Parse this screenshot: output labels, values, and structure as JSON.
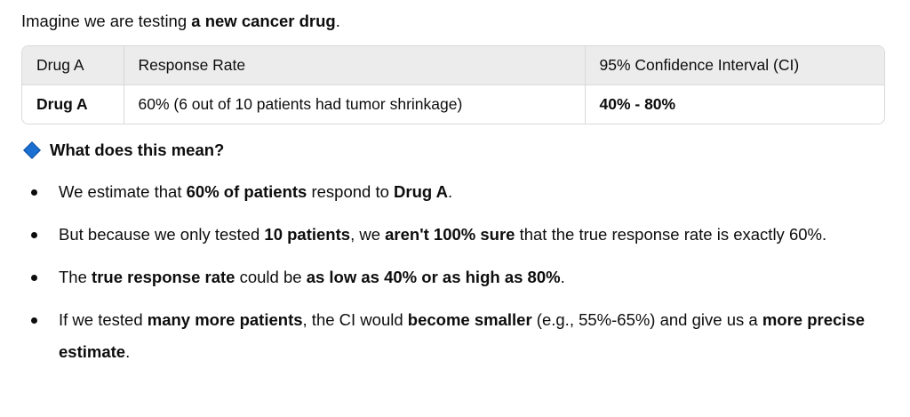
{
  "intro": {
    "prefix": "Imagine we are testing ",
    "bold": "a new cancer drug",
    "suffix": "."
  },
  "table": {
    "headers": [
      "Drug A",
      "Response Rate",
      "95% Confidence Interval (CI)"
    ],
    "row": [
      "Drug A",
      "60% (6 out of 10 patients had tumor shrinkage)",
      "40% - 80%"
    ]
  },
  "section": {
    "title": "What does this mean?",
    "icon": "blue-diamond-icon",
    "icon_color": "#1a6fd1"
  },
  "bullets": [
    {
      "t0": "We estimate that ",
      "b0": "60% of patients",
      "t1": " respond to ",
      "b1": "Drug A",
      "t2": "."
    },
    {
      "t0": "But because we only tested ",
      "b0": "10 patients",
      "t1": ", we ",
      "b1": "aren't 100% sure",
      "t2": " that the true response rate is exactly 60%."
    },
    {
      "t0": "The ",
      "b0": "true response rate",
      "t1": " could be ",
      "b1": "as low as 40% or as high as 80%",
      "t2": "."
    },
    {
      "t0": "If we tested ",
      "b0": "many more patients",
      "t1": ", the CI would ",
      "b1": "become smaller",
      "t2": " (e.g., 55%-65%) and give us a ",
      "b2": "more precise estimate",
      "t3": "."
    }
  ]
}
